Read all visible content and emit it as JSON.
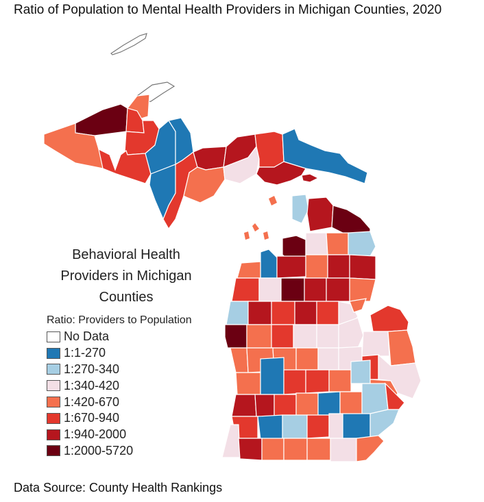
{
  "title": "Ratio of Population to Mental Health Providers in Michigan Counties, 2020",
  "legend": {
    "heading_lines": [
      "Behavioral Health",
      "Providers in Michigan",
      "Counties"
    ],
    "subtitle": "Ratio: Providers to Population",
    "items": [
      {
        "label": "No Data",
        "color": "#ffffff"
      },
      {
        "label": "1:1-270",
        "color": "#1f78b4"
      },
      {
        "label": "1:270-340",
        "color": "#a6cee3"
      },
      {
        "label": "1:340-420",
        "color": "#f3dfe6"
      },
      {
        "label": "1:420-670",
        "color": "#f4704e"
      },
      {
        "label": "1:670-940",
        "color": "#e3382d"
      },
      {
        "label": "1:940-2000",
        "color": "#b5161e"
      },
      {
        "label": "1:2000-5720",
        "color": "#6b0012"
      }
    ]
  },
  "source": "Data Source: County Health Rankings",
  "colors": {
    "border": "#ffffff",
    "outline": "#777777"
  }
}
